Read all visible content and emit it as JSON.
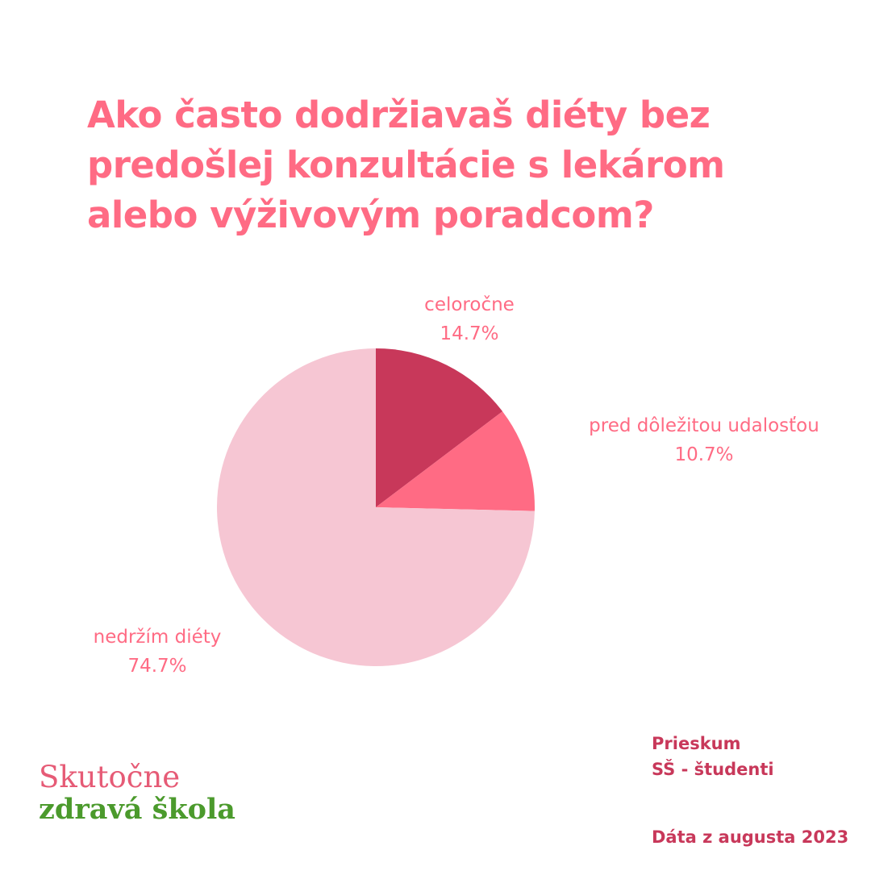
{
  "chart_data": {
    "type": "pie",
    "title": "Ako často dodržiavaš diéty bez predošlej konzultácie s lekárom alebo výživovým poradcom?",
    "slices": [
      {
        "label": "celoročne",
        "value": 14.7,
        "value_label": "14.7%",
        "color": "#c8385a"
      },
      {
        "label": "pred dôležitou udalosťou",
        "value": 10.7,
        "value_label": "10.7%",
        "color": "#ff6b84"
      },
      {
        "label": "nedržím diéty",
        "value": 74.7,
        "value_label": "74.7%",
        "color": "#f6c6d3"
      }
    ],
    "start_angle": "top",
    "direction": "clockwise"
  },
  "footer": {
    "source_line1": "Prieskum",
    "source_line2": "SŠ - študenti",
    "date": "Dáta z augusta 2023"
  },
  "logo": {
    "line1": "Skutočne",
    "line2": "zdravá škola"
  },
  "colors": {
    "title": "#ff6b84",
    "labels": "#ff6b84",
    "source_text": "#c8385a",
    "logo_pink": "#e65b76",
    "logo_green": "#4b9a2c"
  }
}
